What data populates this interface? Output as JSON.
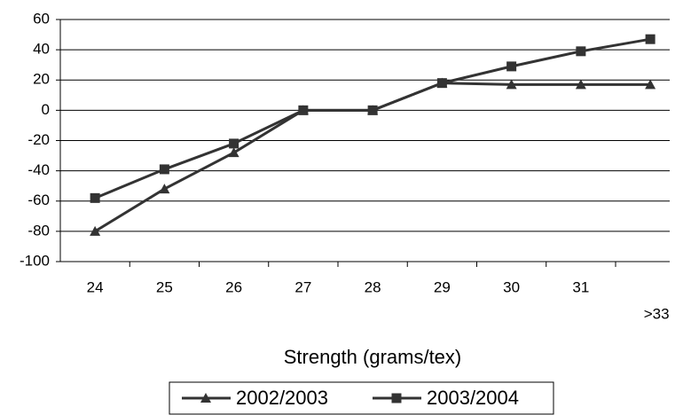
{
  "chart_data": {
    "type": "line",
    "x_label": "Strength (grams/tex)",
    "categories": [
      "24",
      "25",
      "26",
      "27",
      "28",
      "29",
      "30",
      "31",
      ">33"
    ],
    "series": [
      {
        "name": "2002/2003",
        "color": "#333333",
        "marker": "triangle",
        "values": [
          -80,
          -52,
          -28,
          0,
          0,
          18,
          17,
          17,
          17
        ]
      },
      {
        "name": "2003/2004",
        "color": "#333333",
        "marker": "square",
        "values": [
          -58,
          -39,
          -22,
          0,
          0,
          18,
          29,
          39,
          47
        ]
      }
    ],
    "ylim": [
      -100,
      60
    ],
    "yticks": [
      -100,
      -80,
      -60,
      -40,
      -20,
      0,
      20,
      40,
      60
    ],
    "grid": true
  }
}
